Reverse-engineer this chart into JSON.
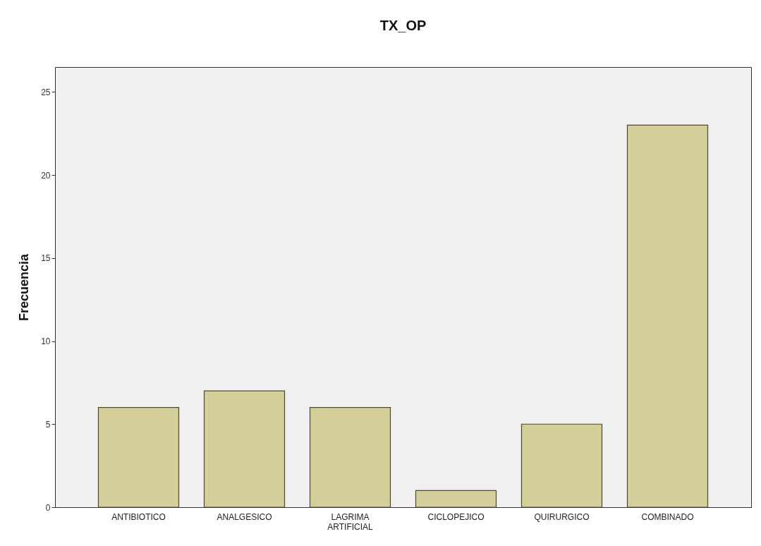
{
  "chart_data": {
    "type": "bar",
    "title": "TX_OP",
    "ylabel": "Frecuencia",
    "categories": [
      "ANTIBIOTICO",
      "ANALGESICO",
      "LAGRIMA ARTIFICIAL",
      "CICLOPEJICO",
      "QUIRURGICO",
      "COMBINADO"
    ],
    "values": [
      6,
      7,
      6,
      1,
      5,
      23
    ],
    "color": "#d4cf98",
    "ylim": [
      0,
      26.5
    ],
    "yticks": [
      0,
      5,
      10,
      15,
      20,
      25
    ],
    "grid": false
  }
}
